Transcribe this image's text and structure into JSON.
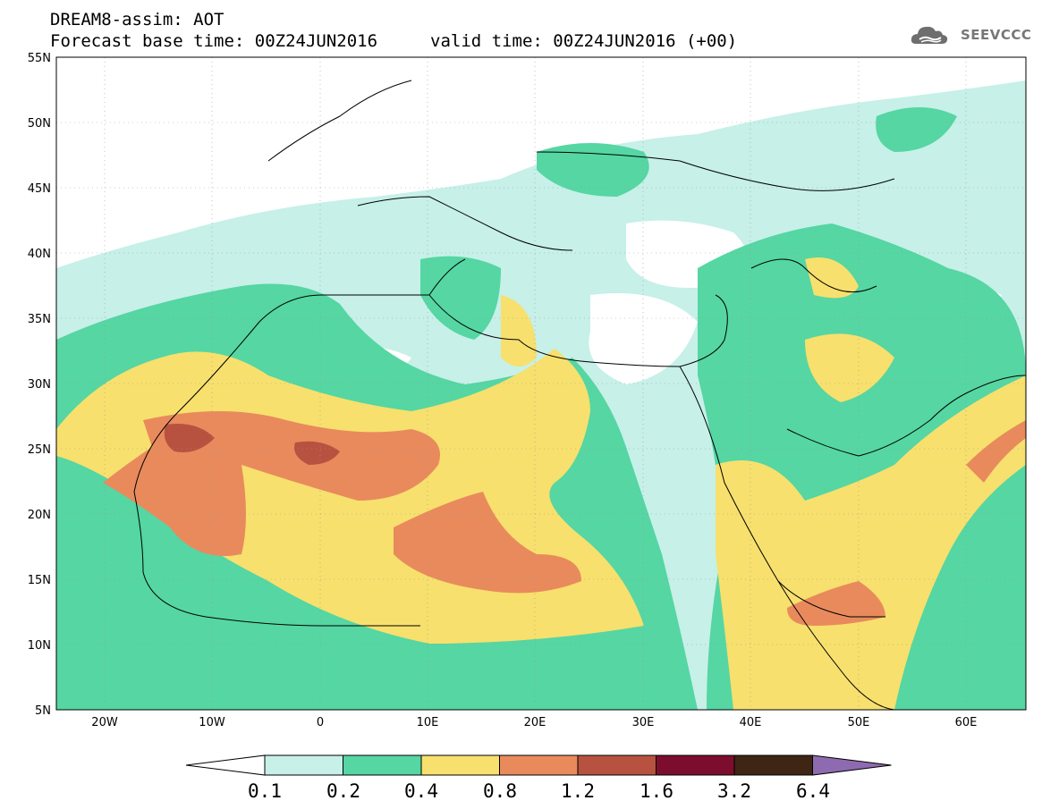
{
  "header": {
    "title_line1": "DREAM8-assim: AOT",
    "title_line2": "Forecast base time: 00Z24JUN2016",
    "valid_time": "valid time: 00Z24JUN2016 (+00)",
    "logo_text": "SEEVCCC"
  },
  "map": {
    "lat_labels": [
      "55N",
      "50N",
      "45N",
      "40N",
      "35N",
      "30N",
      "25N",
      "20N",
      "15N",
      "10N",
      "5N"
    ],
    "lon_labels": [
      "20W",
      "10W",
      "0",
      "10E",
      "20E",
      "30E",
      "40E",
      "50E",
      "60E"
    ],
    "extent": {
      "lon_min": -25,
      "lon_max": 65,
      "lat_min": 5,
      "lat_max": 55
    },
    "field": "AOT"
  },
  "legend": {
    "labels": [
      "0.1",
      "0.2",
      "0.4",
      "0.8",
      "1.2",
      "1.6",
      "3.2",
      "6.4"
    ],
    "colors": [
      "#ffffff",
      "#c6f0e8",
      "#55d6a3",
      "#f7e06d",
      "#e98a5d",
      "#b85240",
      "#7d0d2e",
      "#3e2514",
      "#8e6bb0"
    ]
  }
}
